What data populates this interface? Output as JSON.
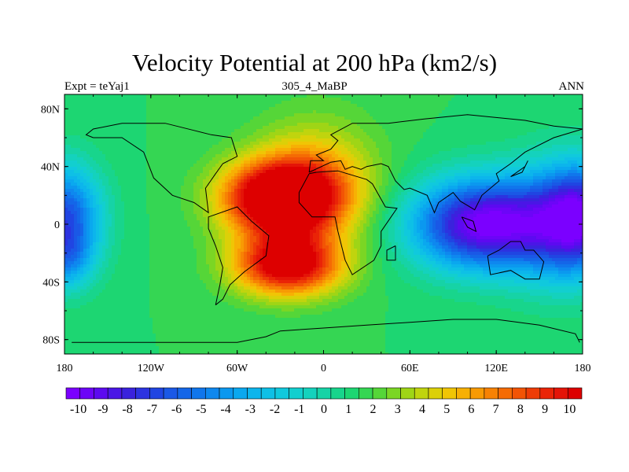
{
  "chart_data": {
    "type": "heatmap",
    "title": "Velocity Potential at 200 hPa (km2/s)",
    "left_label": "Expt = teYaj1",
    "center_label": "305_4_MaBP",
    "right_label": "ANN",
    "x_ticks": [
      "180",
      "120W",
      "60W",
      "0",
      "60E",
      "120E",
      "180"
    ],
    "x_tick_values": [
      -180,
      -120,
      -60,
      0,
      60,
      120,
      180
    ],
    "y_ticks": [
      "80N",
      "40N",
      "0",
      "40S",
      "80S"
    ],
    "y_tick_values": [
      80,
      40,
      0,
      -40,
      -80
    ],
    "xlim": [
      -180,
      180
    ],
    "ylim": [
      -90,
      90
    ],
    "colorbar_labels": [
      "-10",
      "-9",
      "-8",
      "-7",
      "-6",
      "-5",
      "-4",
      "-3",
      "-2",
      "-1",
      "0",
      "1",
      "2",
      "3",
      "4",
      "5",
      "6",
      "7",
      "8",
      "9",
      "10"
    ],
    "colorbar_min": -10.5,
    "colorbar_max": 10.5,
    "colorbar_step": 0.5,
    "colors": [
      "#7b00ff",
      "#6c05f7",
      "#5c0af0",
      "#4a16e6",
      "#3a22dd",
      "#2c33e0",
      "#2045e2",
      "#1a58e6",
      "#1466e8",
      "#1076ec",
      "#0e88ef",
      "#0b98ef",
      "#0aa8ef",
      "#0cb5ec",
      "#0ec0e6",
      "#10c9dd",
      "#12cfcf",
      "#14d2bd",
      "#16d3a6",
      "#18d58c",
      "#1dd672",
      "#35d653",
      "#55d638",
      "#7bd624",
      "#9fd516",
      "#c0d40e",
      "#dcd008",
      "#f0c505",
      "#f7b004",
      "#f89a04",
      "#f78204",
      "#f56b04",
      "#f25405",
      "#ee3c06",
      "#ea2407",
      "#e41408",
      "#dd0000"
    ],
    "centers": [
      {
        "lon": -30,
        "lat": 18,
        "amp": 10.4,
        "sx": 28,
        "sy": 18
      },
      {
        "lon": -25,
        "lat": -28,
        "amp": 8.8,
        "sx": 26,
        "sy": 15
      },
      {
        "lon": -5,
        "lat": 30,
        "amp": 3.5,
        "sx": 30,
        "sy": 30
      },
      {
        "lon": 110,
        "lat": 0,
        "amp": -10.0,
        "sx": 34,
        "sy": 22
      },
      {
        "lon": 160,
        "lat": 0,
        "amp": -4.0,
        "sx": 25,
        "sy": 30
      },
      {
        "lon": -180,
        "lat": 5,
        "amp": -7.0,
        "sx": 18,
        "sy": 25
      },
      {
        "lon": 180,
        "lat": 5,
        "amp": -7.0,
        "sx": 18,
        "sy": 25
      },
      {
        "lon": -180,
        "lat": -25,
        "amp": -3.0,
        "sx": 14,
        "sy": 15
      }
    ],
    "coastlines": [
      [
        [
          -175,
          -82
        ],
        [
          -60,
          -82
        ],
        [
          -40,
          -78
        ],
        [
          -30,
          -74
        ],
        [
          0,
          -72
        ],
        [
          30,
          -70
        ],
        [
          60,
          -68
        ],
        [
          90,
          -66
        ],
        [
          120,
          -66
        ],
        [
          150,
          -70
        ],
        [
          175,
          -76
        ],
        [
          178,
          -82
        ]
      ],
      [
        [
          -75,
          -56
        ],
        [
          -72,
          -42
        ],
        [
          -70,
          -30
        ],
        [
          -75,
          -15
        ],
        [
          -80,
          -3
        ],
        [
          -80,
          5
        ],
        [
          -60,
          12
        ],
        [
          -50,
          2
        ],
        [
          -38,
          -8
        ],
        [
          -40,
          -22
        ],
        [
          -55,
          -33
        ],
        [
          -65,
          -42
        ],
        [
          -70,
          -52
        ],
        [
          -75,
          -56
        ]
      ],
      [
        [
          -160,
          60
        ],
        [
          -140,
          60
        ],
        [
          -125,
          50
        ],
        [
          -118,
          32
        ],
        [
          -105,
          20
        ],
        [
          -90,
          15
        ],
        [
          -80,
          8
        ],
        [
          -82,
          25
        ],
        [
          -75,
          35
        ],
        [
          -70,
          42
        ],
        [
          -60,
          47
        ],
        [
          -64,
          60
        ],
        [
          -78,
          62
        ],
        [
          -90,
          65
        ],
        [
          -110,
          70
        ],
        [
          -140,
          70
        ],
        [
          -160,
          66
        ],
        [
          -165,
          62
        ],
        [
          -160,
          60
        ]
      ],
      [
        [
          -10,
          35
        ],
        [
          -5,
          36
        ],
        [
          10,
          37
        ],
        [
          30,
          31
        ],
        [
          34,
          28
        ],
        [
          43,
          12
        ],
        [
          51,
          11
        ],
        [
          40,
          -5
        ],
        [
          40,
          -15
        ],
        [
          35,
          -25
        ],
        [
          20,
          -35
        ],
        [
          15,
          -25
        ],
        [
          10,
          -5
        ],
        [
          8,
          5
        ],
        [
          -8,
          5
        ],
        [
          -17,
          15
        ],
        [
          -17,
          22
        ],
        [
          -10,
          35
        ]
      ],
      [
        [
          -10,
          36
        ],
        [
          -9,
          44
        ],
        [
          0,
          44
        ],
        [
          -5,
          48
        ],
        [
          5,
          52
        ],
        [
          10,
          58
        ],
        [
          5,
          62
        ],
        [
          20,
          70
        ],
        [
          45,
          70
        ],
        [
          70,
          73
        ],
        [
          100,
          76
        ],
        [
          140,
          72
        ],
        [
          160,
          68
        ],
        [
          180,
          66
        ],
        [
          160,
          60
        ],
        [
          140,
          50
        ],
        [
          130,
          42
        ],
        [
          120,
          35
        ],
        [
          122,
          30
        ],
        [
          110,
          20
        ],
        [
          105,
          10
        ],
        [
          100,
          13
        ],
        [
          95,
          16
        ],
        [
          90,
          22
        ],
        [
          80,
          15
        ],
        [
          77,
          8
        ],
        [
          72,
          20
        ],
        [
          60,
          25
        ],
        [
          56,
          24
        ],
        [
          50,
          30
        ],
        [
          45,
          40
        ],
        [
          40,
          42
        ],
        [
          30,
          40
        ],
        [
          26,
          38
        ],
        [
          20,
          40
        ],
        [
          15,
          38
        ],
        [
          12,
          44
        ],
        [
          5,
          43
        ],
        [
          -10,
          36
        ]
      ],
      [
        [
          114,
          -22
        ],
        [
          122,
          -18
        ],
        [
          130,
          -12
        ],
        [
          137,
          -12
        ],
        [
          140,
          -18
        ],
        [
          146,
          -18
        ],
        [
          153,
          -26
        ],
        [
          150,
          -38
        ],
        [
          140,
          -38
        ],
        [
          130,
          -32
        ],
        [
          116,
          -35
        ],
        [
          114,
          -22
        ]
      ],
      [
        [
          96,
          5
        ],
        [
          104,
          2
        ],
        [
          106,
          -5
        ],
        [
          100,
          -2
        ],
        [
          96,
          5
        ]
      ],
      [
        [
          50,
          -15
        ],
        [
          50,
          -25
        ],
        [
          44,
          -25
        ],
        [
          44,
          -18
        ],
        [
          50,
          -15
        ]
      ],
      [
        [
          130,
          33
        ],
        [
          140,
          40
        ],
        [
          142,
          44
        ],
        [
          138,
          36
        ],
        [
          130,
          33
        ]
      ]
    ]
  }
}
